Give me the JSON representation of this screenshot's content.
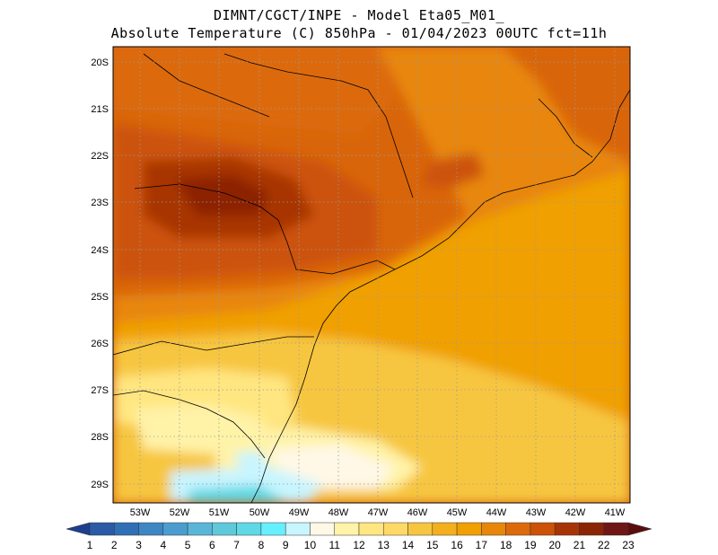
{
  "header": {
    "title_line1": "DIMNT/CGCT/INPE -  Model Eta05_M01_",
    "title_line2": "Absolute Temperature (C) 850hPa -  01/04/2023 00UTC fct=11h"
  },
  "map": {
    "lat_ticks": [
      "20S",
      "21S",
      "22S",
      "23S",
      "24S",
      "25S",
      "26S",
      "27S",
      "28S",
      "29S"
    ],
    "lon_ticks": [
      "53W",
      "52W",
      "51W",
      "50W",
      "49W",
      "48W",
      "47W",
      "46W",
      "45W",
      "44W",
      "43W",
      "42W",
      "41W"
    ]
  },
  "colorbar": {
    "labels": [
      "1",
      "2",
      "3",
      "4",
      "5",
      "6",
      "7",
      "8",
      "9",
      "10",
      "11",
      "12",
      "13",
      "14",
      "15",
      "16",
      "17",
      "18",
      "19",
      "20",
      "21",
      "22",
      "23"
    ],
    "colors": [
      "#1e3f8f",
      "#2b5aa6",
      "#2f6fb6",
      "#3d86c4",
      "#4b9dcf",
      "#5ab6d8",
      "#5fc9dc",
      "#5fd9e6",
      "#66f0ff",
      "#c8f5ff",
      "#fff8e6",
      "#fff3a8",
      "#ffe680",
      "#ffd966",
      "#f7c640",
      "#f3b01c",
      "#f0a000",
      "#e8860a",
      "#dc6a0a",
      "#cc5208",
      "#a83406",
      "#8c2406",
      "#701616",
      "#5a0e0e"
    ]
  }
}
